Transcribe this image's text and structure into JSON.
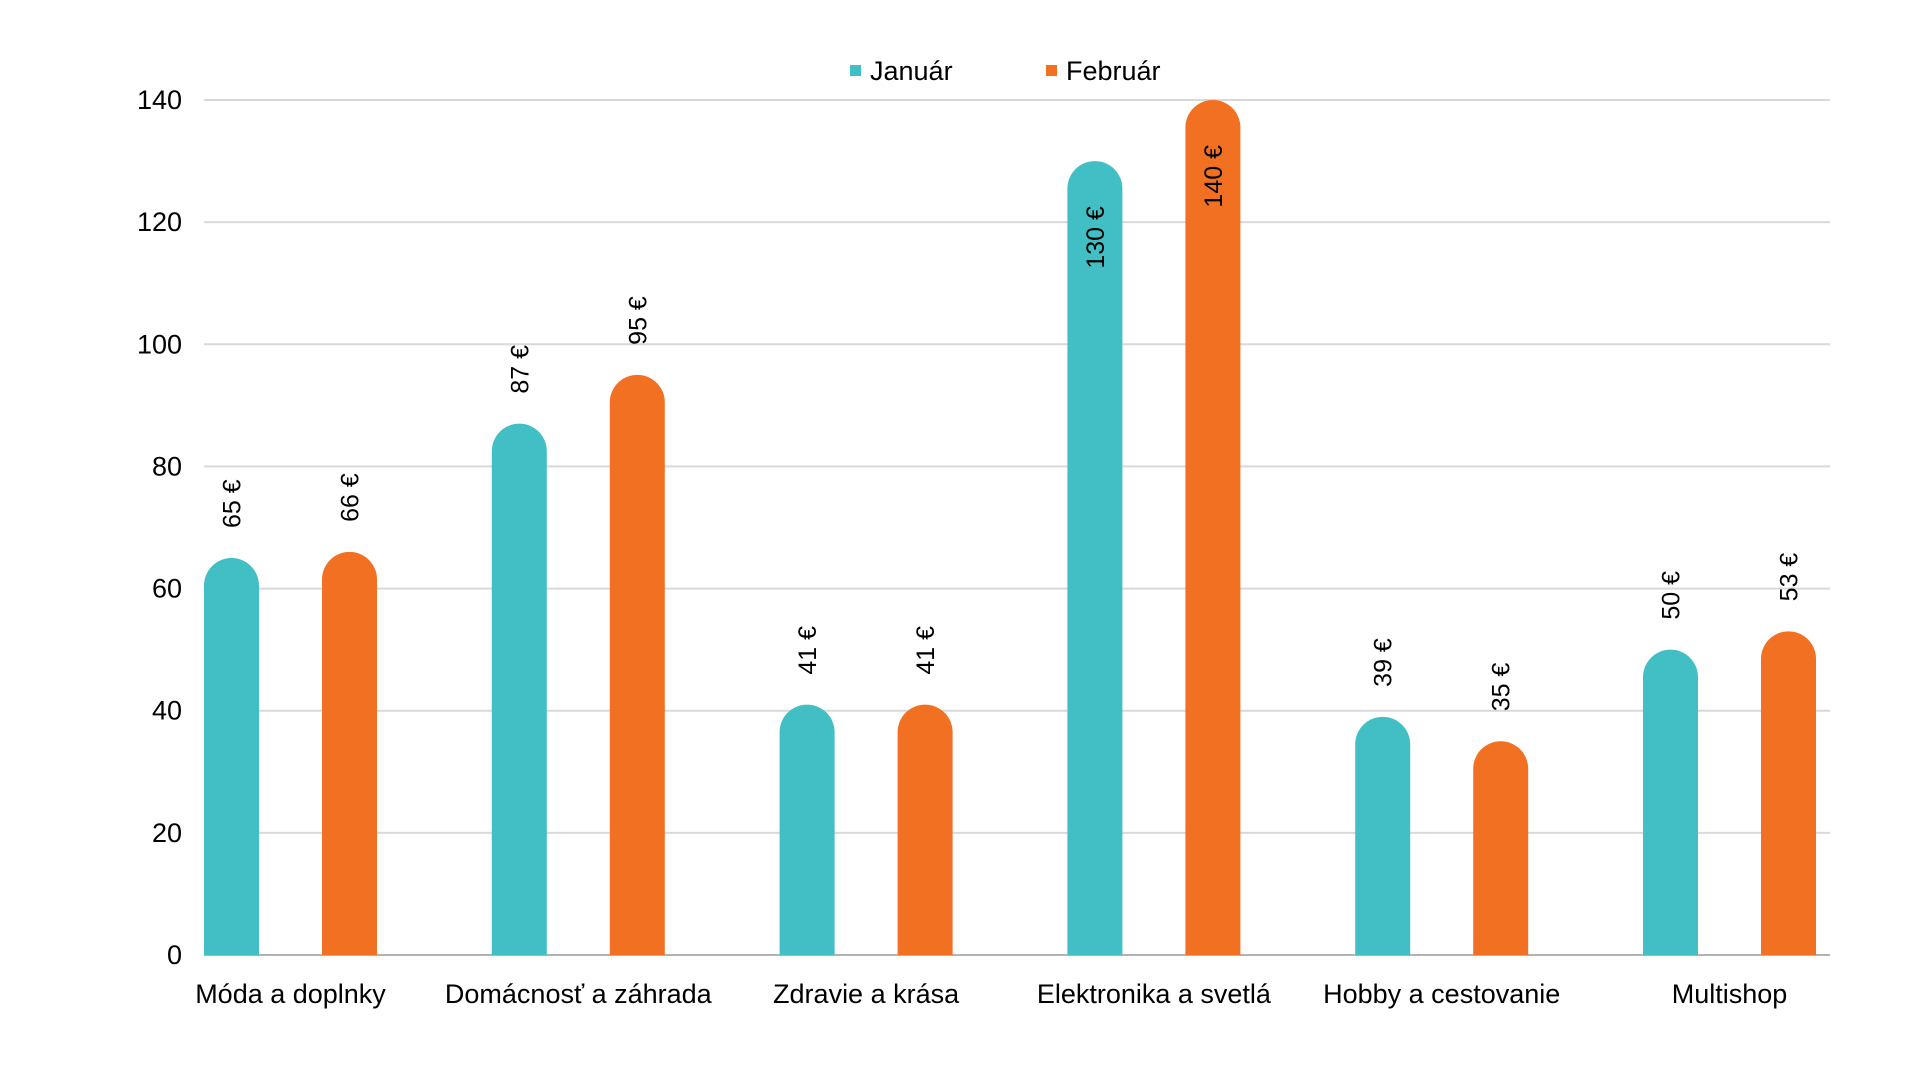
{
  "chart_data": {
    "type": "bar",
    "title": "",
    "xlabel": "",
    "ylabel": "",
    "ylim": [
      0,
      140
    ],
    "yticks": [
      "0",
      "20",
      "40",
      "60",
      "80",
      "100",
      "120",
      "140"
    ],
    "grid": true,
    "legend_position": "top-center",
    "categories": [
      "Móda a doplnky",
      "Domácnosť a záhrada",
      "Zdravie a krása",
      "Elektronika a svetlá",
      "Hobby a cestovanie",
      "Multishop"
    ],
    "series": [
      {
        "name": "Január",
        "color": "#41BFC4",
        "values": [
          65,
          87,
          41,
          130,
          39,
          50
        ],
        "labels": [
          "65 €",
          "87 €",
          "41 €",
          "130 €",
          "39 €",
          "50 €"
        ]
      },
      {
        "name": "Február",
        "color": "#F27022",
        "values": [
          66,
          95,
          41,
          140,
          35,
          53
        ],
        "labels": [
          "66 €",
          "95 €",
          "41 €",
          "140 €",
          "35 €",
          "53 €"
        ]
      }
    ]
  }
}
